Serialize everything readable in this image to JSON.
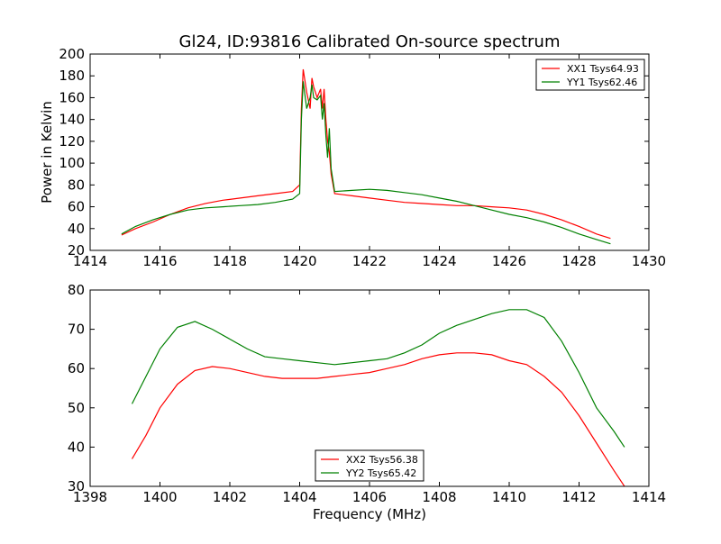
{
  "title": "Gl24, ID:93816 Calibrated On-source spectrum",
  "colors": {
    "xx": "#ff0000",
    "yy": "#008000",
    "axes": "#000000",
    "background": "#ffffff"
  },
  "chart_data": [
    {
      "type": "line",
      "xlim": [
        1414,
        1430
      ],
      "ylim": [
        20,
        200
      ],
      "xticks": [
        1414,
        1416,
        1418,
        1420,
        1422,
        1424,
        1426,
        1428,
        1430
      ],
      "yticks": [
        20,
        40,
        60,
        80,
        100,
        120,
        140,
        160,
        180,
        200
      ],
      "xlabel": "",
      "ylabel": "Power in Kelvin",
      "legend_position": "top-right",
      "grid": false,
      "series": [
        {
          "name": "XX1 Tsys64.93",
          "color": "#ff0000",
          "x": [
            1414.9,
            1415.3,
            1415.8,
            1416.3,
            1416.8,
            1417.3,
            1417.8,
            1418.3,
            1418.8,
            1419.3,
            1419.8,
            1420.0,
            1420.05,
            1420.1,
            1420.2,
            1420.3,
            1420.35,
            1420.4,
            1420.5,
            1420.6,
            1420.65,
            1420.7,
            1420.75,
            1420.8,
            1420.85,
            1420.9,
            1421.0,
            1421.5,
            1422.0,
            1422.5,
            1423.0,
            1423.5,
            1424.0,
            1424.5,
            1425.0,
            1425.5,
            1426.0,
            1426.5,
            1427.0,
            1427.5,
            1428.0,
            1428.5,
            1428.9
          ],
          "y": [
            34,
            40,
            46,
            53,
            59,
            63,
            66,
            68,
            70,
            72,
            74,
            80,
            150,
            186,
            165,
            150,
            178,
            170,
            160,
            168,
            150,
            168,
            140,
            120,
            110,
            90,
            72,
            70,
            68,
            66,
            64,
            63,
            62,
            61,
            61,
            60,
            59,
            57,
            53,
            48,
            42,
            35,
            31
          ]
        },
        {
          "name": "YY1 Tsys62.46",
          "color": "#008000",
          "x": [
            1414.9,
            1415.3,
            1415.8,
            1416.3,
            1416.8,
            1417.3,
            1417.8,
            1418.3,
            1418.8,
            1419.3,
            1419.8,
            1420.0,
            1420.05,
            1420.1,
            1420.2,
            1420.3,
            1420.35,
            1420.4,
            1420.5,
            1420.6,
            1420.65,
            1420.7,
            1420.75,
            1420.8,
            1420.85,
            1420.9,
            1421.0,
            1421.5,
            1422.0,
            1422.5,
            1423.0,
            1423.5,
            1424.0,
            1424.5,
            1425.0,
            1425.5,
            1426.0,
            1426.5,
            1427.0,
            1427.5,
            1428.0,
            1428.5,
            1428.9
          ],
          "y": [
            35,
            42,
            48,
            53,
            57,
            59,
            60,
            61,
            62,
            64,
            67,
            72,
            140,
            175,
            150,
            160,
            172,
            160,
            158,
            162,
            140,
            155,
            125,
            105,
            132,
            95,
            74,
            75,
            76,
            75,
            73,
            71,
            68,
            65,
            61,
            57,
            53,
            50,
            46,
            41,
            35,
            30,
            26
          ]
        }
      ]
    },
    {
      "type": "line",
      "xlim": [
        1398,
        1414
      ],
      "ylim": [
        30,
        80
      ],
      "xticks": [
        1398,
        1400,
        1402,
        1404,
        1406,
        1408,
        1410,
        1412,
        1414
      ],
      "yticks": [
        30,
        40,
        50,
        60,
        70,
        80
      ],
      "xlabel": "Frequency (MHz)",
      "ylabel": "",
      "legend_position": "bottom-center",
      "grid": false,
      "series": [
        {
          "name": "XX2 Tsys56.38",
          "color": "#ff0000",
          "x": [
            1399.2,
            1399.6,
            1400.0,
            1400.5,
            1401.0,
            1401.5,
            1402.0,
            1402.5,
            1403.0,
            1403.5,
            1404.0,
            1404.5,
            1405.0,
            1405.5,
            1406.0,
            1406.5,
            1407.0,
            1407.5,
            1408.0,
            1408.5,
            1409.0,
            1409.5,
            1410.0,
            1410.5,
            1411.0,
            1411.5,
            1412.0,
            1412.5,
            1413.0,
            1413.3
          ],
          "y": [
            37,
            43,
            50,
            56,
            59.5,
            60.5,
            60,
            59,
            58,
            57.5,
            57.5,
            57.5,
            58,
            58.5,
            59,
            60,
            61,
            62.5,
            63.5,
            64,
            64,
            63.5,
            62,
            61,
            58,
            54,
            48,
            41,
            34,
            30
          ]
        },
        {
          "name": "YY2 Tsys65.42",
          "color": "#008000",
          "x": [
            1399.2,
            1399.6,
            1400.0,
            1400.5,
            1401.0,
            1401.5,
            1402.0,
            1402.5,
            1403.0,
            1403.5,
            1404.0,
            1404.5,
            1405.0,
            1405.5,
            1406.0,
            1406.5,
            1407.0,
            1407.5,
            1408.0,
            1408.5,
            1409.0,
            1409.5,
            1410.0,
            1410.5,
            1411.0,
            1411.5,
            1412.0,
            1412.5,
            1413.0,
            1413.3
          ],
          "y": [
            51,
            58,
            65,
            70.5,
            72,
            70,
            67.5,
            65,
            63,
            62.5,
            62,
            61.5,
            61,
            61.5,
            62,
            62.5,
            64,
            66,
            69,
            71,
            72.5,
            74,
            75,
            75,
            73,
            67,
            59,
            50,
            44,
            40
          ]
        }
      ]
    }
  ]
}
